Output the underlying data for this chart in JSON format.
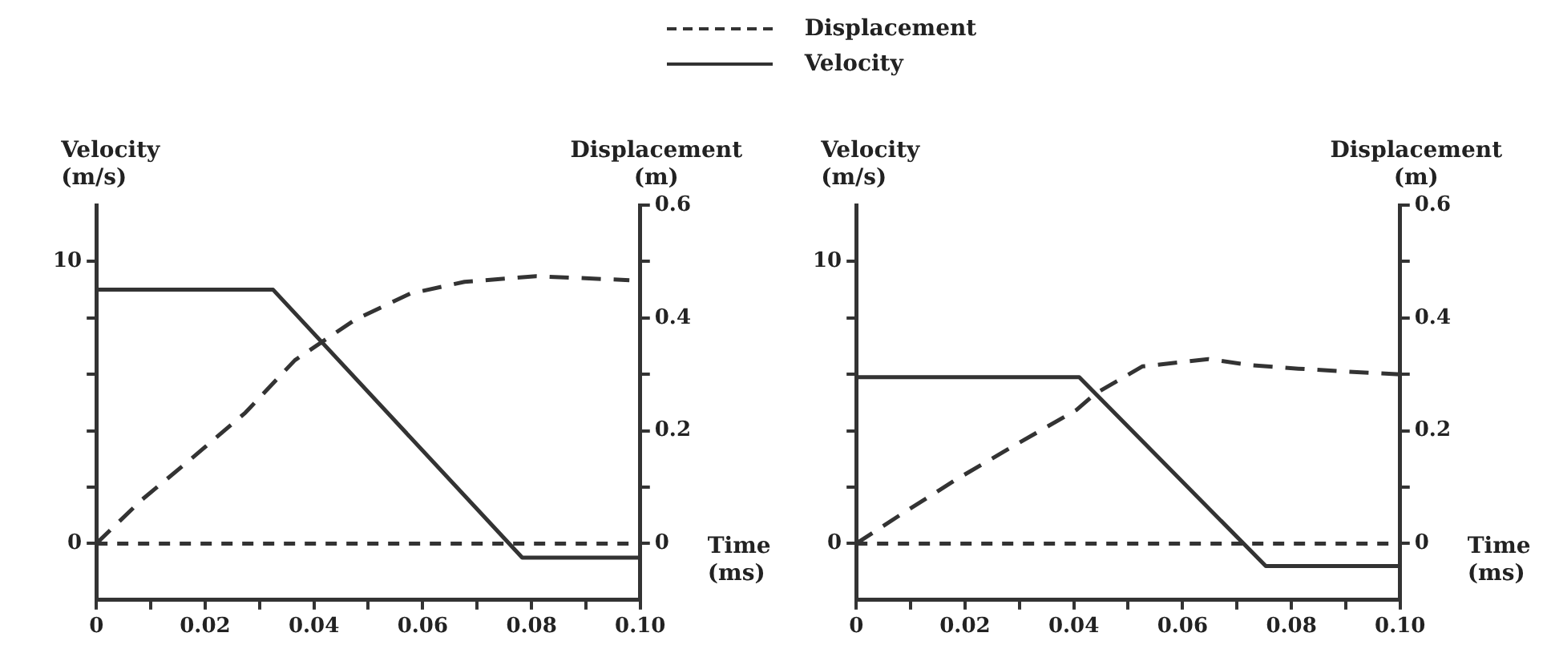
{
  "chart_data": [
    {
      "type": "line",
      "xlabel": "Time\n(ms)",
      "ylabel": "Velocity\n(m/s)",
      "y2label": "Displacement\n(m)",
      "legend": "top",
      "xlim": [
        0,
        0.1
      ],
      "xticks": [
        0,
        {
          "value": 0.01,
          "label": null
        },
        0.02,
        {
          "value": 0.03,
          "label": null
        },
        0.04,
        {
          "value": 0.05,
          "label": null
        },
        0.06,
        {
          "value": 0.07,
          "label": null
        },
        0.08,
        {
          "value": 0.09,
          "label": null
        },
        {
          "value": 0.1,
          "label": "0.10"
        }
      ],
      "ylim": [
        -2,
        12
      ],
      "yticks": [
        {
          "value": 0,
          "label": "0"
        },
        {
          "value": 2,
          "label": null
        },
        {
          "value": 4,
          "label": null
        },
        {
          "value": 6,
          "label": null
        },
        {
          "value": 8,
          "label": null
        },
        10
      ],
      "y2lim": [
        -0.1,
        0.6
      ],
      "y2ticks": [
        {
          "value": 0,
          "label": "0"
        },
        {
          "value": 0.1,
          "label": null
        },
        0.2,
        {
          "value": 0.3,
          "label": null
        },
        0.4,
        {
          "value": 0.5,
          "label": null
        },
        0.6
      ],
      "ref_lines": [
        {
          "axis": "y",
          "value": 0,
          "line_style": "dashed",
          "color": "#333333"
        }
      ],
      "series": [
        {
          "name": "Displacement",
          "color": "#333333",
          "line_style": "dashed",
          "axis": "y2",
          "x": [
            0,
            0.0083,
            0.0173,
            0.0274,
            0.0365,
            0.0476,
            0.0577,
            0.0677,
            0.0808,
            0.098
          ],
          "values": [
            0,
            0.077,
            0.149,
            0.232,
            0.325,
            0.397,
            0.443,
            0.464,
            0.474,
            0.467
          ]
        },
        {
          "name": "Velocity",
          "color": "#333333",
          "line_style": "solid",
          "x": [
            0,
            0.0325,
            0.0783,
            0.1
          ],
          "values": [
            9,
            9,
            -0.5,
            -0.5
          ]
        }
      ]
    },
    {
      "type": "line",
      "xlabel": "Time\n(ms)",
      "ylabel": "Velocity\n(m/s)",
      "y2label": "Displacement\n(m)",
      "xlim": [
        0,
        0.1
      ],
      "xticks": [
        0,
        {
          "value": 0.01,
          "label": null
        },
        0.02,
        {
          "value": 0.03,
          "label": null
        },
        0.04,
        {
          "value": 0.05,
          "label": null
        },
        0.06,
        {
          "value": 0.07,
          "label": null
        },
        0.08,
        {
          "value": 0.09,
          "label": null
        },
        {
          "value": 0.1,
          "label": "0.10"
        }
      ],
      "ylim": [
        -2,
        12
      ],
      "yticks": [
        {
          "value": 0,
          "label": "0"
        },
        {
          "value": 2,
          "label": null
        },
        {
          "value": 4,
          "label": null
        },
        {
          "value": 6,
          "label": null
        },
        {
          "value": 8,
          "label": null
        },
        10
      ],
      "y2lim": [
        -0.1,
        0.6
      ],
      "y2ticks": [
        {
          "value": 0,
          "label": "0"
        },
        {
          "value": 0.1,
          "label": null
        },
        0.2,
        {
          "value": 0.3,
          "label": null
        },
        0.4,
        {
          "value": 0.5,
          "label": null
        },
        0.6
      ],
      "ref_lines": [
        {
          "axis": "y",
          "value": 0,
          "line_style": "dashed",
          "color": "#333333"
        }
      ],
      "series": [
        {
          "color": "#333333",
          "line_style": "dashed",
          "axis": "y2",
          "x": [
            0,
            0.0083,
            0.0183,
            0.0284,
            0.0405,
            0.044,
            0.0526,
            0.0647,
            0.0728,
            0.0813,
            0.09,
            0.1
          ],
          "values": [
            0,
            0.052,
            0.113,
            0.17,
            0.237,
            0.266,
            0.314,
            0.327,
            0.316,
            0.31,
            0.305,
            0.3
          ]
        },
        {
          "color": "#333333",
          "line_style": "solid",
          "x": [
            0,
            0.041,
            0.0753,
            0.1
          ],
          "values": [
            5.9,
            5.9,
            -0.8,
            -0.8
          ]
        }
      ]
    }
  ]
}
